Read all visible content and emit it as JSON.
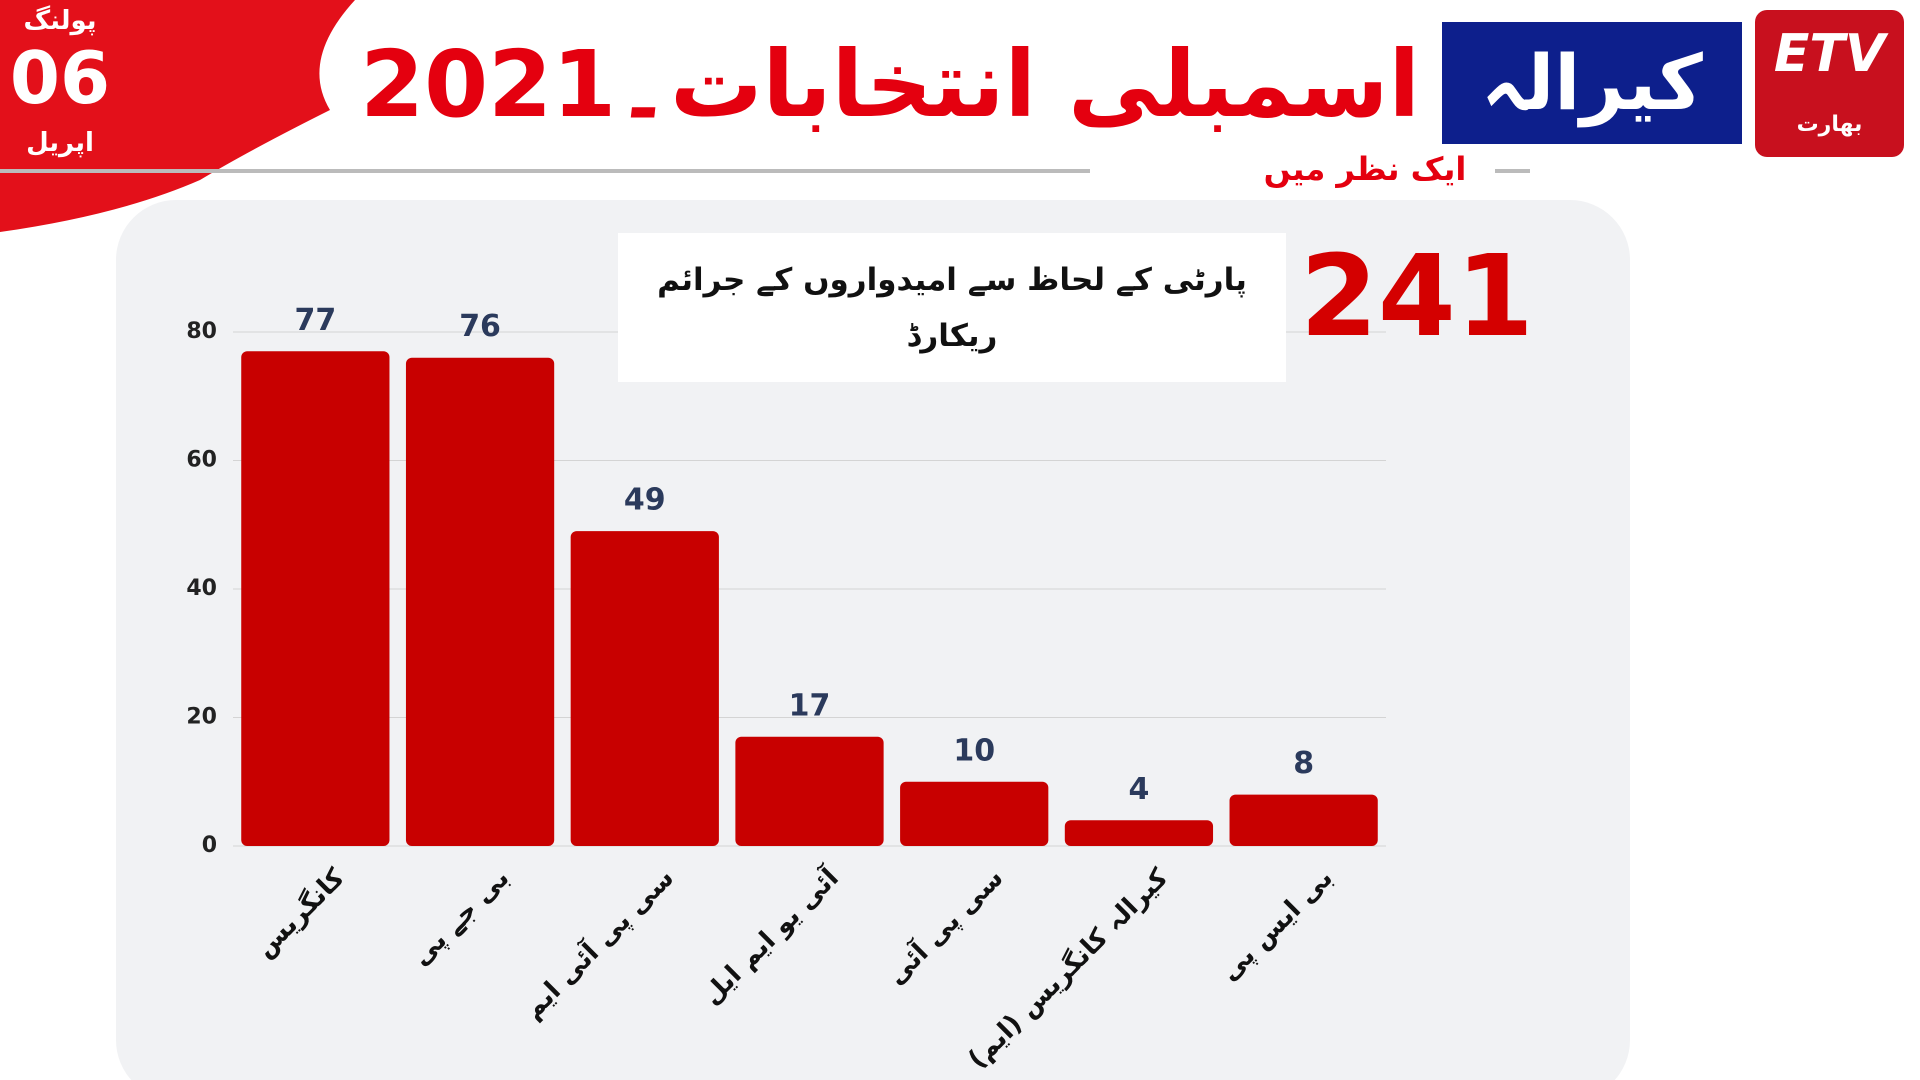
{
  "header": {
    "polling": "پولنگ",
    "day": "06",
    "month": "اپریل",
    "title": "اسمبلی انتخابات۔2021",
    "state": "کیرالہ",
    "subtitle": "ایک نظر میں",
    "logo": "بھارت"
  },
  "chart_data": {
    "type": "bar",
    "title": "پارٹی کے لحاظ سے امیدواروں کے جرائم ریکارڈ",
    "total": "241",
    "categories": [
      "کانگریس",
      "بی جے پی",
      "سی پی آئی ایم",
      "آئی یو ایم ایل",
      "سی پی آئی",
      "کیرالہ کانگریس (ایم)",
      "بی ایس پی"
    ],
    "values": [
      77,
      76,
      49,
      17,
      10,
      4,
      8
    ],
    "color": "#c80000",
    "ylim": [
      0,
      80
    ],
    "yticks": [
      0,
      20,
      40,
      60,
      80
    ],
    "grid": true
  }
}
